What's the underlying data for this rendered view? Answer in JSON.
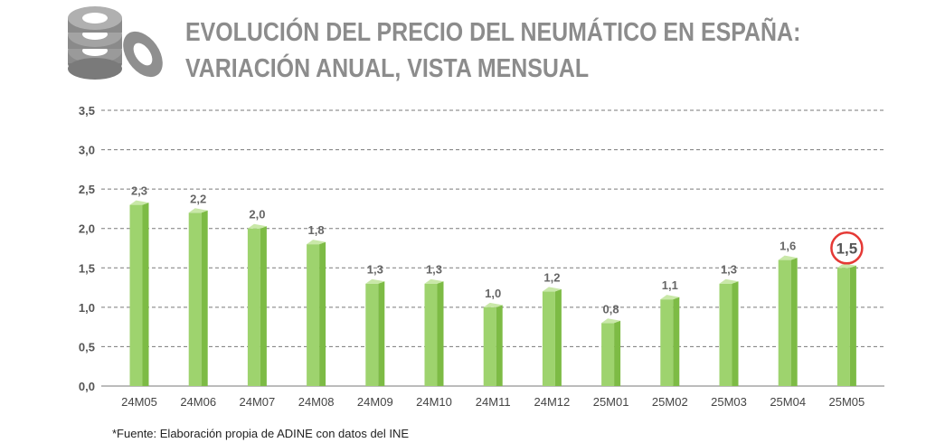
{
  "header": {
    "title_line1": "EVOLUCIÓN DEL PRECIO DEL NEUMÁTICO EN ESPAÑA:",
    "title_line2": "VARIACIÓN ANUAL, VISTA MENSUAL",
    "logo_icon": "tire-stack-icon"
  },
  "footer": {
    "source": "*Fuente: Elaboración propia de ADINE con datos del INE"
  },
  "colors": {
    "bar_face": "#9ed36e",
    "bar_side": "#7dbb45",
    "bar_top": "#c9e8a8",
    "title": "#8c8c8c",
    "highlight_circle": "#e53935",
    "grid": "#7a7a7a",
    "tick_text": "#555555"
  },
  "chart_data": {
    "type": "bar",
    "title": "EVOLUCIÓN DEL PRECIO DEL NEUMÁTICO EN ESPAÑA: VARIACIÓN ANUAL, VISTA MENSUAL",
    "categories": [
      "24M05",
      "24M06",
      "24M07",
      "24M08",
      "24M09",
      "24M10",
      "24M11",
      "24M12",
      "25M01",
      "25M02",
      "25M03",
      "25M04",
      "25M05"
    ],
    "values": [
      2.3,
      2.2,
      2.0,
      1.8,
      1.3,
      1.3,
      1.0,
      1.2,
      0.8,
      1.1,
      1.3,
      1.6,
      1.5
    ],
    "value_labels": [
      "2,3",
      "2,2",
      "2,0",
      "1,8",
      "1,3",
      "1,3",
      "1,0",
      "1,2",
      "0,8",
      "1,1",
      "1,3",
      "1,6",
      "1,5"
    ],
    "highlighted_category": "25M05",
    "y_ticks": [
      0,
      0.5,
      1.0,
      1.5,
      2.0,
      2.5,
      3.0,
      3.5
    ],
    "y_tick_labels": [
      "0,0",
      "0,5",
      "1,0",
      "1,5",
      "2,0",
      "2,5",
      "3,0",
      "3,5"
    ],
    "ylim": [
      0,
      3.5
    ],
    "xlabel": "",
    "ylabel": "",
    "grid": true,
    "legend": "none"
  }
}
